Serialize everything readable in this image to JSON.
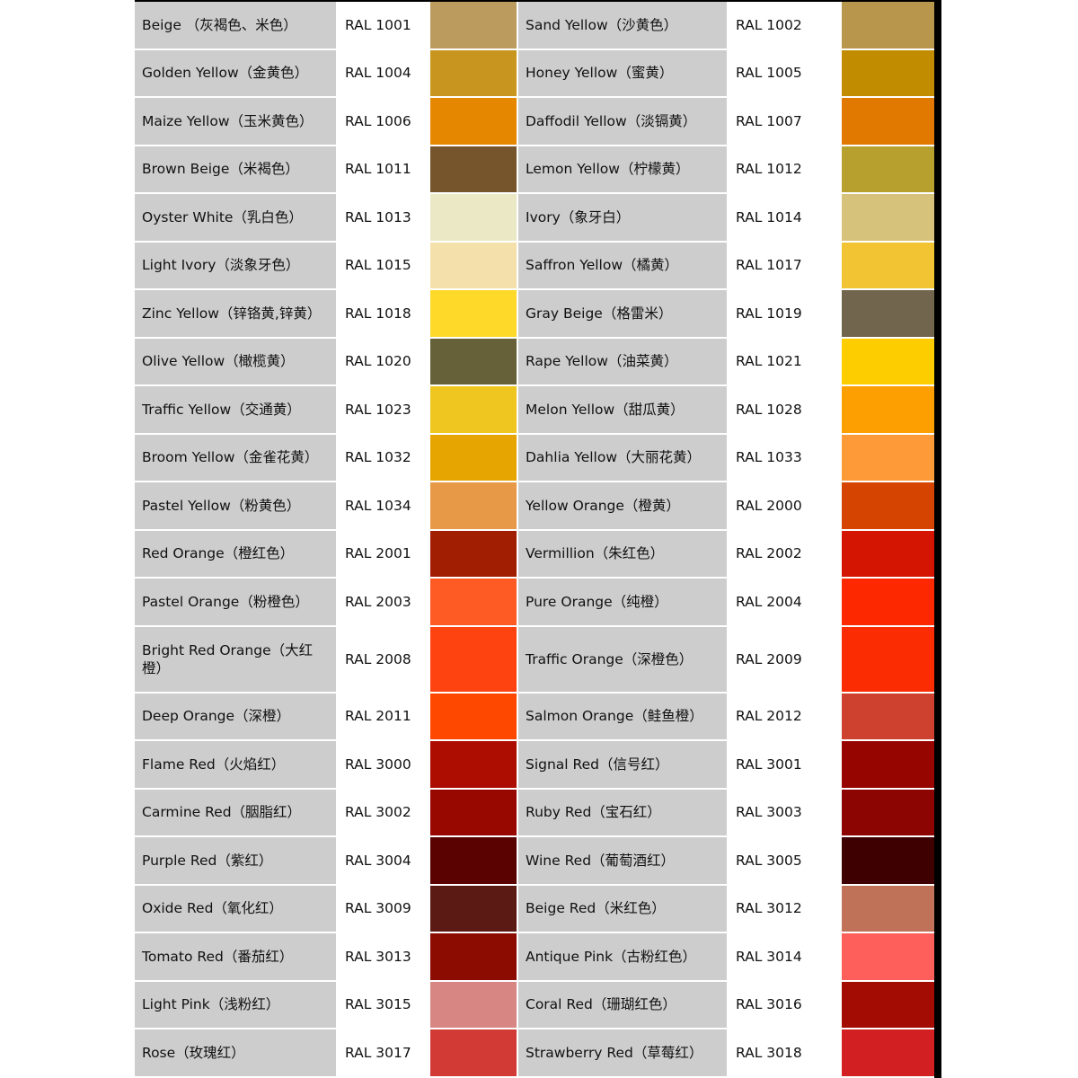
{
  "rows": [
    [
      {
        "name": "Beige （灰褐色、米色）",
        "code": "RAL 1001",
        "color": "#bc9c5e"
      },
      {
        "name": "Sand Yellow（沙黄色）",
        "code": "RAL 1002",
        "color": "#b8964c"
      }
    ],
    [
      {
        "name": "Golden Yellow（金黄色）",
        "code": "RAL 1004",
        "color": "#c8961e"
      },
      {
        "name": "Honey Yellow（蜜黄）",
        "code": "RAL 1005",
        "color": "#c28c00"
      }
    ],
    [
      {
        "name": "Maize Yellow（玉米黄色）",
        "code": "RAL 1006",
        "color": "#e68700"
      },
      {
        "name": "Daffodil Yellow（淡镉黄）",
        "code": "RAL 1007",
        "color": "#e17800"
      }
    ],
    [
      {
        "name": "Brown Beige（米褐色）",
        "code": "RAL 1011",
        "color": "#76552c"
      },
      {
        "name": "Lemon Yellow（柠檬黄）",
        "code": "RAL 1012",
        "color": "#b7a02e"
      }
    ],
    [
      {
        "name": "Oyster White（乳白色）",
        "code": "RAL 1013",
        "color": "#ebe8c5"
      },
      {
        "name": "Ivory（象牙白）",
        "code": "RAL 1014",
        "color": "#d6c27a"
      }
    ],
    [
      {
        "name": "Light Ivory（淡象牙色）",
        "code": "RAL 1015",
        "color": "#f4e0ab"
      },
      {
        "name": "Saffron Yellow（橘黄）",
        "code": "RAL 1017",
        "color": "#f2c434"
      }
    ],
    [
      {
        "name": "Zinc Yellow（锌铬黄,锌黄）",
        "code": "RAL 1018",
        "color": "#fed92a"
      },
      {
        "name": "Gray Beige（格雷米）",
        "code": "RAL 1019",
        "color": "#72654d"
      }
    ],
    [
      {
        "name": "Olive Yellow（橄榄黄）",
        "code": "RAL 1020",
        "color": "#676139"
      },
      {
        "name": "Rape Yellow（油菜黄）",
        "code": "RAL 1021",
        "color": "#fecd00"
      }
    ],
    [
      {
        "name": "Traffic Yellow（交通黄）",
        "code": "RAL 1023",
        "color": "#efc620"
      },
      {
        "name": "Melon Yellow（甜瓜黄）",
        "code": "RAL 1028",
        "color": "#fd9e01"
      }
    ],
    [
      {
        "name": "Broom Yellow（金雀花黄）",
        "code": "RAL 1032",
        "color": "#e7a502"
      },
      {
        "name": "Dahlia Yellow（大丽花黄）",
        "code": "RAL 1033",
        "color": "#fe9a38"
      }
    ],
    [
      {
        "name": "Pastel Yellow（粉黄色）",
        "code": "RAL 1034",
        "color": "#e89948"
      },
      {
        "name": "Yellow Orange（橙黄）",
        "code": "RAL 2000",
        "color": "#d54501"
      }
    ],
    [
      {
        "name": "Red Orange（橙红色）",
        "code": "RAL 2001",
        "color": "#a11e02"
      },
      {
        "name": "Vermillion（朱红色）",
        "code": "RAL 2002",
        "color": "#d41502"
      }
    ],
    [
      {
        "name": "Pastel Orange（粉橙色）",
        "code": "RAL 2003",
        "color": "#fd5a24"
      },
      {
        "name": "Pure Orange（纯橙）",
        "code": "RAL 2004",
        "color": "#fd2800"
      }
    ],
    [
      {
        "name": "Bright Red Orange（大红橙）",
        "code": "RAL 2008",
        "color": "#fe4210",
        "tall": true
      },
      {
        "name": "Traffic Orange（深橙色）",
        "code": "RAL 2009",
        "color": "#fb2c01"
      }
    ],
    [
      {
        "name": "Deep Orange（深橙）",
        "code": "RAL 2011",
        "color": "#fe4800"
      },
      {
        "name": "Salmon Orange（鲑鱼橙）",
        "code": "RAL 2012",
        "color": "#cd412e"
      }
    ],
    [
      {
        "name": "Flame Red（火焰红）",
        "code": "RAL 3000",
        "color": "#ad0d01"
      },
      {
        "name": "Signal Red（信号红）",
        "code": "RAL 3001",
        "color": "#970501"
      }
    ],
    [
      {
        "name": "Carmine Red（胭脂红）",
        "code": "RAL 3002",
        "color": "#990701"
      },
      {
        "name": "Ruby Red（宝石红）",
        "code": "RAL 3003",
        "color": "#8d0503"
      }
    ],
    [
      {
        "name": "Purple Red（紫红）",
        "code": "RAL 3004",
        "color": "#5a0202"
      },
      {
        "name": "Wine Red（葡萄酒红）",
        "code": "RAL 3005",
        "color": "#3f0001"
      }
    ],
    [
      {
        "name": "Oxide Red（氧化红）",
        "code": "RAL 3009",
        "color": "#5c1a14"
      },
      {
        "name": "Beige Red（米红色）",
        "code": "RAL 3012",
        "color": "#c07258"
      }
    ],
    [
      {
        "name": "Tomato Red（番茄红）",
        "code": "RAL 3013",
        "color": "#8c0c02"
      },
      {
        "name": "Antique Pink（古粉红色）",
        "code": "RAL 3014",
        "color": "#fe5f5a"
      }
    ],
    [
      {
        "name": "Light Pink（浅粉红）",
        "code": "RAL 3015",
        "color": "#d78684"
      },
      {
        "name": "Coral Red（珊瑚红色）",
        "code": "RAL 3016",
        "color": "#a30c02"
      }
    ],
    [
      {
        "name": "Rose（玫瑰红）",
        "code": "RAL 3017",
        "color": "#d23a36"
      },
      {
        "name": "Strawberry Red（草莓红）",
        "code": "RAL 3018",
        "color": "#d21f22"
      }
    ]
  ]
}
